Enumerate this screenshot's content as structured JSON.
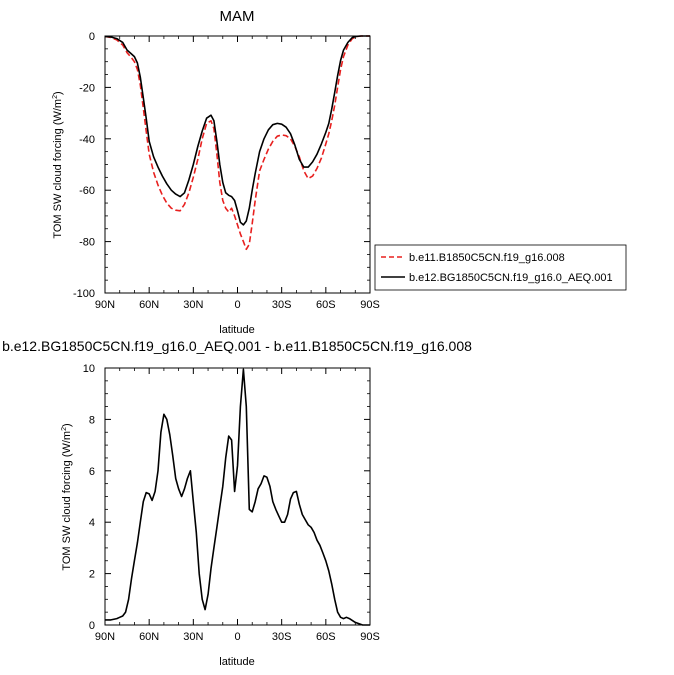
{
  "chart_data": [
    {
      "type": "line",
      "title": "MAM",
      "xlabel": "latitude",
      "ylabel": "TOM SW cloud forcing (W/m",
      "ylabel_sup": "2",
      "ylabel_close": ")",
      "xlim": [
        90,
        -90
      ],
      "ylim": [
        -100,
        0
      ],
      "x_ticks": [
        90,
        60,
        30,
        0,
        -30,
        -60,
        -90
      ],
      "x_tick_labels": [
        "90N",
        "60N",
        "30N",
        "0",
        "30S",
        "60S",
        "90S"
      ],
      "y_ticks": [
        0,
        -20,
        -40,
        -60,
        -80,
        -100
      ],
      "y_tick_labels": [
        "0",
        "-20",
        "-40",
        "-60",
        "-80",
        "-100"
      ],
      "legend_position": "right",
      "series": [
        {
          "name": "b.e11.B1850C5CN.f19_g16.008",
          "color": "#e8201f",
          "dash": "dashed",
          "x": [
            90,
            86,
            82,
            78,
            75,
            72,
            70,
            68,
            66,
            64,
            62,
            60,
            57,
            54,
            51,
            48,
            45,
            42,
            39,
            36,
            33,
            30,
            27,
            24,
            21,
            18,
            16,
            14,
            12,
            10,
            8,
            6,
            4,
            2,
            0,
            -2,
            -4,
            -6,
            -8,
            -10,
            -12,
            -15,
            -18,
            -21,
            -24,
            -27,
            -30,
            -33,
            -36,
            -39,
            -42,
            -45,
            -48,
            -51,
            -54,
            -57,
            -60,
            -62,
            -64,
            -66,
            -68,
            -70,
            -72,
            -75,
            -78,
            -81,
            -84,
            -87,
            -90
          ],
          "y": [
            -0.2,
            -0.6,
            -1.5,
            -3.5,
            -6.5,
            -8.5,
            -10.0,
            -13.0,
            -19.0,
            -28.0,
            -37.0,
            -46.0,
            -53.0,
            -58.0,
            -62.0,
            -65.0,
            -67.0,
            -67.8,
            -68.0,
            -65.5,
            -61.0,
            -55.0,
            -48.0,
            -40.0,
            -34.0,
            -33.0,
            -36.0,
            -46.0,
            -57.0,
            -64.0,
            -67.0,
            -68.5,
            -67.0,
            -70.0,
            -73.5,
            -77.0,
            -80.0,
            -83.0,
            -81.0,
            -73.0,
            -64.0,
            -52.5,
            -48.0,
            -44.0,
            -41.0,
            -39.0,
            -38.5,
            -38.8,
            -40.0,
            -43.0,
            -47.0,
            -52.5,
            -55.5,
            -54.5,
            -51.5,
            -47.5,
            -42.0,
            -38.0,
            -33.0,
            -27.0,
            -20.0,
            -13.0,
            -8.0,
            -3.5,
            -1.0,
            -0.2,
            0.0,
            0.0,
            0.0
          ]
        },
        {
          "name": "b.e12.BG1850C5CN.f19_g16.0_AEQ.001",
          "color": "#000000",
          "dash": "solid",
          "x": [
            90,
            86,
            82,
            78,
            75,
            72,
            70,
            68,
            66,
            64,
            62,
            60,
            57,
            54,
            51,
            48,
            45,
            42,
            39,
            36,
            33,
            30,
            27,
            24,
            21,
            18,
            16,
            14,
            12,
            10,
            8,
            6,
            4,
            2,
            0,
            -2,
            -4,
            -6,
            -8,
            -10,
            -12,
            -15,
            -18,
            -21,
            -24,
            -27,
            -30,
            -33,
            -36,
            -39,
            -42,
            -45,
            -48,
            -51,
            -54,
            -57,
            -60,
            -62,
            -64,
            -66,
            -68,
            -70,
            -72,
            -75,
            -78,
            -81,
            -84,
            -87,
            -90
          ],
          "y": [
            -0.2,
            -0.4,
            -1.0,
            -2.5,
            -5.5,
            -7.0,
            -8.0,
            -10.5,
            -16.0,
            -24.0,
            -32.0,
            -41.0,
            -47.0,
            -51.0,
            -54.5,
            -57.5,
            -60.0,
            -61.5,
            -62.5,
            -61.0,
            -56.0,
            -50.0,
            -43.0,
            -37.0,
            -32.0,
            -30.8,
            -33.0,
            -41.0,
            -50.0,
            -57.0,
            -61.0,
            -62.0,
            -62.5,
            -64.0,
            -68.0,
            -72.5,
            -73.5,
            -72.0,
            -67.0,
            -60.0,
            -53.5,
            -45.0,
            -40.0,
            -36.5,
            -34.5,
            -34.0,
            -34.3,
            -35.5,
            -38.0,
            -42.5,
            -48.0,
            -51.0,
            -51.0,
            -49.0,
            -46.0,
            -42.0,
            -37.5,
            -34.0,
            -28.5,
            -22.0,
            -15.5,
            -9.5,
            -5.5,
            -2.5,
            -0.6,
            -0.1,
            0.0,
            0.0,
            0.0
          ]
        }
      ]
    },
    {
      "type": "line",
      "title": "b.e12.BG1850C5CN.f19_g16.0_AEQ.001 - b.e11.B1850C5CN.f19_g16.008",
      "xlabel": "latitude",
      "ylabel": "TOM SW cloud forcing (W/m",
      "ylabel_sup": "2",
      "ylabel_close": ")",
      "xlim": [
        90,
        -90
      ],
      "ylim": [
        0,
        10
      ],
      "x_ticks": [
        90,
        60,
        30,
        0,
        -30,
        -60,
        -90
      ],
      "x_tick_labels": [
        "90N",
        "60N",
        "30N",
        "0",
        "30S",
        "60S",
        "90S"
      ],
      "y_ticks": [
        0,
        2,
        4,
        6,
        8,
        10
      ],
      "y_tick_labels": [
        "0",
        "2",
        "4",
        "6",
        "8",
        "10"
      ],
      "series": [
        {
          "color": "#000000",
          "dash": "solid",
          "x": [
            90,
            86,
            82,
            80,
            78,
            76,
            74,
            72,
            70,
            68,
            66,
            64,
            62,
            60,
            58,
            56,
            54,
            52,
            50,
            48,
            46,
            44,
            42,
            40,
            38,
            36,
            34,
            32,
            30,
            28,
            26,
            24,
            22,
            20,
            18,
            16,
            14,
            12,
            10,
            8,
            6,
            4,
            2,
            0,
            -2,
            -4,
            -6,
            -8,
            -10,
            -12,
            -14,
            -16,
            -18,
            -20,
            -22,
            -24,
            -26,
            -28,
            -30,
            -32,
            -34,
            -36,
            -38,
            -40,
            -42,
            -44,
            -46,
            -48,
            -50,
            -52,
            -54,
            -56,
            -58,
            -60,
            -62,
            -64,
            -66,
            -68,
            -70,
            -72,
            -74,
            -76,
            -80,
            -85,
            -90
          ],
          "y": [
            0.2,
            0.2,
            0.25,
            0.3,
            0.35,
            0.5,
            1.0,
            1.8,
            2.5,
            3.2,
            4.0,
            4.8,
            5.15,
            5.1,
            4.85,
            5.2,
            6.0,
            7.5,
            8.2,
            8.0,
            7.4,
            6.6,
            5.7,
            5.3,
            5.0,
            5.3,
            5.7,
            6.0,
            4.8,
            3.6,
            2.0,
            1.0,
            0.6,
            1.2,
            2.2,
            3.0,
            3.8,
            4.6,
            5.4,
            6.5,
            7.35,
            7.2,
            5.2,
            6.2,
            8.5,
            9.95,
            8.5,
            4.5,
            4.4,
            4.8,
            5.3,
            5.5,
            5.8,
            5.75,
            5.4,
            4.8,
            4.5,
            4.25,
            4.0,
            4.0,
            4.3,
            4.9,
            5.15,
            5.2,
            4.7,
            4.3,
            4.1,
            3.9,
            3.8,
            3.6,
            3.3,
            3.1,
            2.8,
            2.5,
            2.1,
            1.6,
            1.0,
            0.5,
            0.3,
            0.25,
            0.3,
            0.25,
            0.1,
            0.0,
            0.0
          ]
        }
      ]
    }
  ]
}
